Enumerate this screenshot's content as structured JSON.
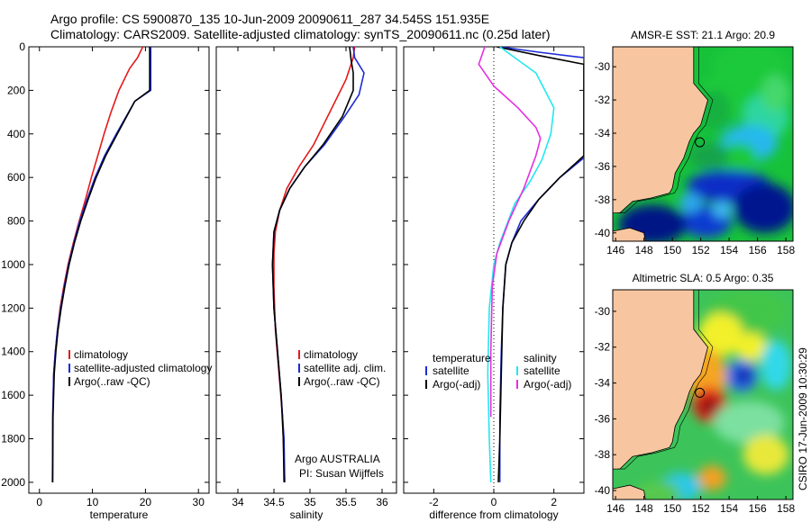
{
  "header": {
    "line1": "Argo profile: CS 5900870_135 10-Jun-2009 20090611_287 34.545S 151.935E",
    "line2": "Climatology: CARS2009. Satellite-adjusted climatology: synTS_20090611.nc (0.25d later)"
  },
  "side_label": "CSIRO 17-Jun-2009 10:30:29",
  "colors": {
    "red": "#e41a1c",
    "blue": "#1d2bd6",
    "black": "#000000",
    "cyan": "#22e8ee",
    "magenta": "#e62fe0",
    "land": "#f7c6a0"
  },
  "chart_data": [
    {
      "type": "line",
      "xlabel": "temperature",
      "xlim": [
        -2,
        32
      ],
      "ylim": [
        2050,
        0
      ],
      "xticks": [
        0,
        10,
        20,
        30
      ],
      "yticks": [
        0,
        200,
        400,
        600,
        800,
        1000,
        1200,
        1400,
        1600,
        1800,
        2000
      ],
      "series": [
        {
          "name": "climatology",
          "color": "#e41a1c",
          "x": [
            19.5,
            18.5,
            17,
            15,
            13.5,
            12.2,
            11,
            9.8,
            8.7,
            7.5,
            6.4,
            5.4,
            4.6,
            3.9,
            3.4,
            3.0,
            2.7,
            2.5,
            2.45
          ],
          "y": [
            0,
            50,
            100,
            200,
            300,
            400,
            500,
            600,
            700,
            800,
            900,
            1000,
            1100,
            1200,
            1300,
            1400,
            1500,
            1700,
            2000
          ]
        },
        {
          "name": "satellite-adjusted climatology",
          "color": "#1d2bd6",
          "x": [
            21,
            21,
            21,
            21,
            18,
            14.5,
            12.3,
            10.5,
            9.0,
            7.6,
            6.5,
            5.5,
            4.7,
            4.0,
            3.4,
            3.0,
            2.7,
            2.5,
            2.45
          ],
          "y": [
            0,
            50,
            100,
            200,
            250,
            400,
            500,
            600,
            700,
            800,
            900,
            1000,
            1100,
            1200,
            1300,
            1400,
            1500,
            1700,
            2000
          ]
        },
        {
          "name": "Argo(..raw -QC)",
          "color": "#000000",
          "x": [
            20.8,
            20.8,
            20.8,
            20.8,
            18,
            14.7,
            12.5,
            10.7,
            9.2,
            7.8,
            6.6,
            5.6,
            4.8,
            4.1,
            3.5,
            3.1,
            2.8,
            2.55,
            2.5
          ],
          "y": [
            0,
            50,
            100,
            200,
            250,
            400,
            500,
            600,
            700,
            800,
            900,
            1000,
            1100,
            1200,
            1300,
            1400,
            1500,
            1700,
            2000
          ]
        }
      ],
      "legend": [
        "climatology",
        "satellite-adjusted climatology",
        "Argo(..raw -QC)"
      ]
    },
    {
      "type": "line",
      "xlabel": "salinity",
      "xlim": [
        33.7,
        36.2
      ],
      "ylim": [
        2050,
        0
      ],
      "xticks": [
        34,
        34.5,
        35,
        35.5,
        36
      ],
      "series": [
        {
          "name": "climatology",
          "color": "#e41a1c",
          "x": [
            35.62,
            35.6,
            35.5,
            35.35,
            35.2,
            35.05,
            34.85,
            34.68,
            34.58,
            34.52,
            34.5,
            34.5,
            34.52,
            34.57,
            34.62,
            34.64,
            34.65
          ],
          "y": [
            0,
            50,
            150,
            250,
            350,
            450,
            550,
            650,
            750,
            850,
            950,
            1100,
            1300,
            1500,
            1700,
            1900,
            2000
          ]
        },
        {
          "name": "satellite adj. clim.",
          "color": "#1d2bd6",
          "x": [
            35.6,
            35.62,
            35.75,
            35.68,
            35.48,
            35.2,
            34.93,
            34.72,
            34.58,
            34.5,
            34.48,
            34.5,
            34.55,
            34.6,
            34.64,
            34.65
          ],
          "y": [
            0,
            50,
            120,
            220,
            320,
            450,
            550,
            650,
            750,
            850,
            1000,
            1200,
            1400,
            1600,
            1800,
            2000
          ]
        },
        {
          "name": "Argo(..raw -QC)",
          "color": "#000000",
          "x": [
            35.55,
            35.57,
            35.6,
            35.6,
            35.45,
            35.18,
            34.93,
            34.72,
            34.58,
            34.5,
            34.48,
            34.5,
            34.55,
            34.6,
            34.63,
            34.64
          ],
          "y": [
            0,
            60,
            120,
            200,
            320,
            450,
            550,
            650,
            750,
            850,
            1000,
            1200,
            1400,
            1600,
            1800,
            2000
          ]
        }
      ],
      "legend": [
        "climatology",
        "satellite adj. clim.",
        "Argo(..raw -QC)"
      ],
      "annotation": {
        "line1": "Argo AUSTRALIA",
        "line2": "PI: Susan Wijffels"
      }
    },
    {
      "type": "line",
      "xlabel": "difference from climatology",
      "xlim": [
        -3,
        3
      ],
      "ylim": [
        2050,
        0
      ],
      "xticks": [
        -2,
        0,
        2
      ],
      "legend_headers": [
        "temperature",
        "salinity"
      ],
      "series": [
        {
          "name": "satellite",
          "group": "temperature",
          "color": "#1d2bd6",
          "x": [
            0.2,
            1.5,
            3.0,
            3.0,
            2.2,
            1.5,
            0.9,
            0.6,
            0.4,
            0.3,
            0.25,
            0.2,
            0.2
          ],
          "y": [
            0,
            25,
            50,
            510,
            600,
            700,
            800,
            900,
            1000,
            1200,
            1400,
            1700,
            2000
          ]
        },
        {
          "name": "Argo(-adj)",
          "group": "temperature",
          "color": "#000000",
          "x": [
            0.1,
            1.5,
            3.0,
            3.0,
            2.6,
            2.2,
            1.5,
            1.0,
            0.6,
            0.4,
            0.3,
            0.25,
            0.2,
            0.15
          ],
          "y": [
            0,
            40,
            80,
            500,
            550,
            600,
            700,
            800,
            900,
            1000,
            1200,
            1500,
            1800,
            2000
          ]
        },
        {
          "name": "satellite",
          "group": "salinity",
          "color": "#22e8ee",
          "x": [
            0.2,
            0.7,
            1.4,
            2.0,
            1.9,
            1.6,
            1.2,
            0.7,
            0.2,
            0.0,
            -0.15,
            -0.2,
            -0.15,
            -0.1
          ],
          "y": [
            0,
            50,
            120,
            280,
            400,
            520,
            620,
            720,
            900,
            1000,
            1200,
            1500,
            1800,
            2000
          ]
        },
        {
          "name": "Argo(-adj)",
          "group": "salinity",
          "color": "#e62fe0",
          "x": [
            -0.3,
            -0.5,
            0.0,
            0.8,
            1.4,
            1.55,
            1.5,
            1.4,
            1.0,
            0.5,
            0.1,
            -0.05,
            -0.1,
            -0.1
          ],
          "y": [
            0,
            80,
            180,
            280,
            370,
            420,
            450,
            500,
            650,
            800,
            950,
            1100,
            1400,
            1700
          ]
        }
      ]
    }
  ],
  "maps": [
    {
      "title": "AMSR-E SST: 21.1 Argo: 20.9",
      "xlim": [
        145.8,
        158.5
      ],
      "ylim": [
        -40.5,
        -28.8
      ],
      "xticks": [
        146,
        148,
        150,
        152,
        154,
        156,
        158
      ],
      "yticks": [
        -30,
        -32,
        -34,
        -36,
        -38,
        -40
      ],
      "argo_position": {
        "lon": 151.935,
        "lat": -34.545
      }
    },
    {
      "title": "Altimetric SLA: 0.5 Argo: 0.35",
      "xlim": [
        145.8,
        158.5
      ],
      "ylim": [
        -40.5,
        -28.8
      ],
      "xticks": [
        146,
        148,
        150,
        152,
        154,
        156,
        158
      ],
      "yticks": [
        -30,
        -32,
        -34,
        -36,
        -38,
        -40
      ],
      "argo_position": {
        "lon": 151.935,
        "lat": -34.545
      }
    }
  ]
}
